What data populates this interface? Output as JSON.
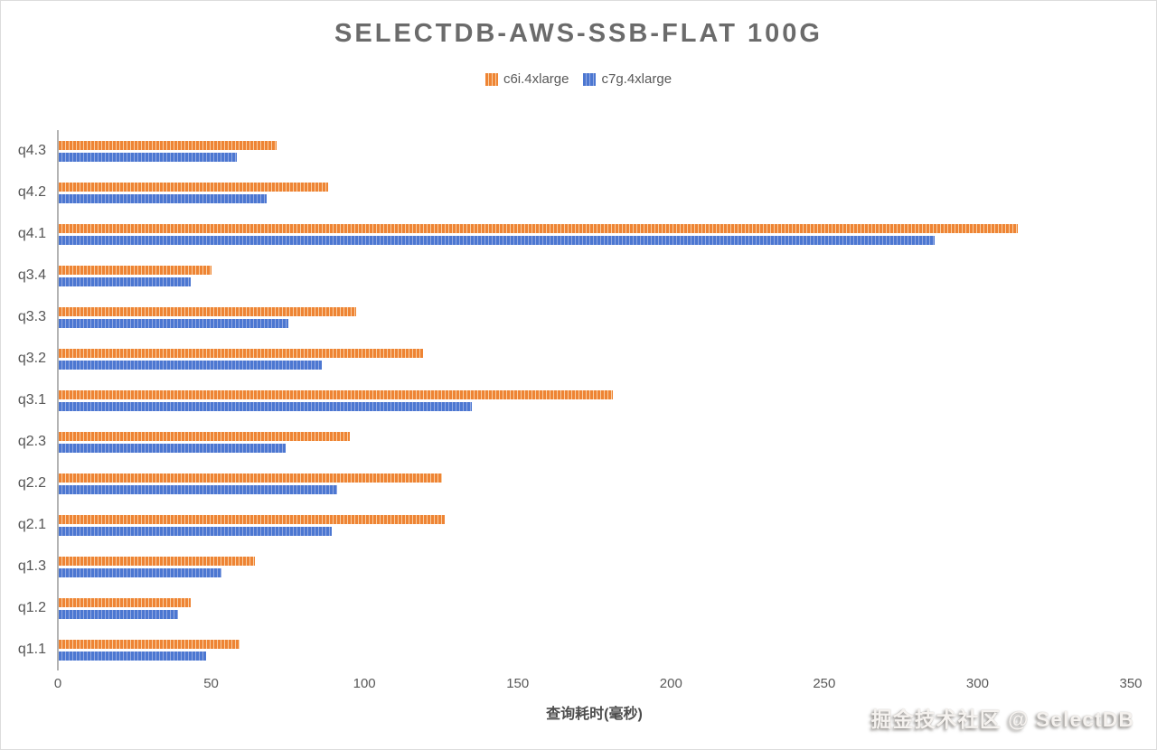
{
  "watermark": "掘金技术社区 @ SelectDB",
  "chart_data": {
    "type": "bar",
    "orientation": "horizontal",
    "title": "SELECTDB-AWS-SSB-FLAT 100G",
    "xlabel": "查询耗时(毫秒)",
    "ylabel": "",
    "xlim": [
      0,
      350
    ],
    "xticks": [
      0,
      50,
      100,
      150,
      200,
      250,
      300,
      350
    ],
    "grid": false,
    "legend_position": "top",
    "bar_style": "vertical-striped",
    "categories_top_to_bottom": [
      "q4.3",
      "q4.2",
      "q4.1",
      "q3.4",
      "q3.3",
      "q3.2",
      "q3.1",
      "q2.3",
      "q2.2",
      "q2.1",
      "q1.3",
      "q1.2",
      "q1.1"
    ],
    "series": [
      {
        "name": "c6i.4xlarge",
        "color": "#ee8434",
        "stripe_color": "#f9cfa4",
        "values": [
          71,
          88,
          313,
          50,
          97,
          119,
          181,
          95,
          125,
          126,
          64,
          43,
          59
        ]
      },
      {
        "name": "c7g.4xlarge",
        "color": "#4c77d1",
        "stripe_color": "#93aae3",
        "values": [
          58,
          68,
          286,
          43,
          75,
          86,
          135,
          74,
          91,
          89,
          53,
          39,
          48
        ]
      }
    ]
  }
}
